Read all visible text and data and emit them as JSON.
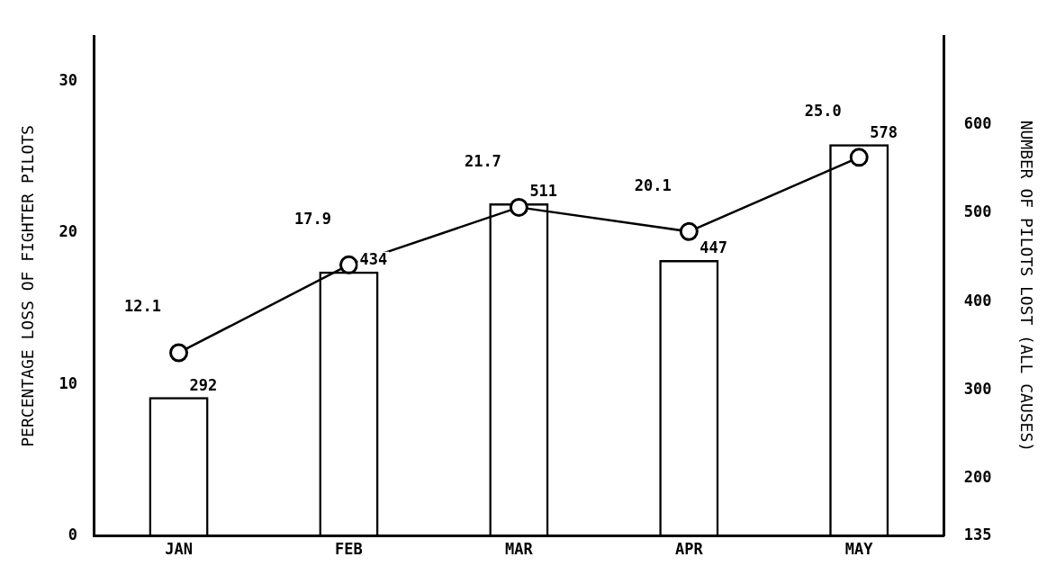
{
  "chart_data": {
    "type": "bar",
    "ylabel": "PERCENTAGE LOSS OF FIGHTER PILOTS",
    "y2label": "NUMBER OF PILOTS LOST (ALL CAUSES)",
    "categories": [
      "JAN",
      "FEB",
      "MAR",
      "APR",
      "MAY"
    ],
    "series": [
      {
        "axis": "y2",
        "color": "#000000",
        "values": [
          292,
          434,
          511,
          447,
          578
        ],
        "value_labels": [
          "292",
          "434",
          "511",
          "447",
          "578"
        ]
      },
      {
        "type": "line",
        "axis": "y",
        "color": "#000000",
        "marker": "circle",
        "values": [
          12.1,
          17.9,
          21.7,
          20.1,
          25.0
        ],
        "value_labels": [
          "12.1",
          "17.9",
          "21.7",
          "20.1",
          "25.0"
        ]
      }
    ],
    "ylim": [
      0,
      33
    ],
    "yticks": [
      0,
      10,
      20,
      30
    ],
    "y2lim": [
      135,
      700
    ],
    "y2ticks": [
      135,
      200,
      300,
      400,
      500,
      600
    ],
    "grid": false,
    "legend": false
  }
}
